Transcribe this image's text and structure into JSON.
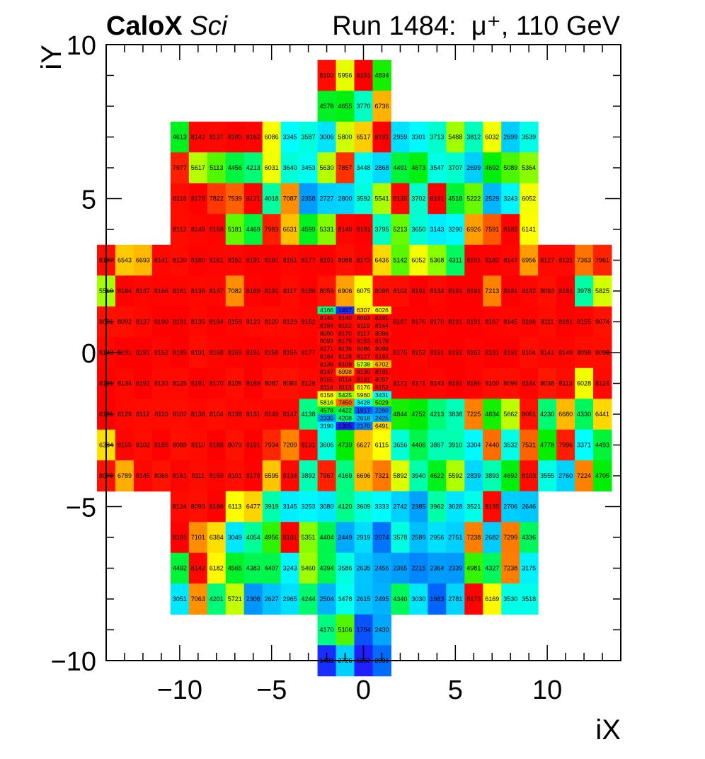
{
  "header": {
    "experiment": "CaloX",
    "detector": "Sci",
    "run_label": "Run 1484:",
    "particle": "μ⁺, 110 GeV"
  },
  "chart_data": {
    "type": "heatmap",
    "xlabel": "iX",
    "ylabel": "iY",
    "xlim": [
      -14,
      14
    ],
    "ylim": [
      -10,
      10
    ],
    "xticks": [
      -10,
      -5,
      0,
      5,
      10
    ],
    "yticks": [
      -10,
      -5,
      0,
      5,
      10
    ],
    "xtick_labels": [
      "−10",
      "−5",
      "0",
      "5",
      "10"
    ],
    "ytick_labels": [
      "−10",
      "−5",
      "0",
      "5",
      "10"
    ],
    "zrange": [
      1300,
      8191
    ],
    "colormap": [
      "#2020ff",
      "#0066ff",
      "#00ccff",
      "#00ffff",
      "#00ff99",
      "#00ee00",
      "#99ff00",
      "#ffff00",
      "#ffaa00",
      "#ff6600",
      "#ff0000"
    ],
    "big_cells": [
      {
        "iy": 9,
        "ix0": -2,
        "values": [
          8100,
          5956,
          8191,
          4834
        ]
      },
      {
        "iy": 8,
        "ix0": -2,
        "values": [
          4578,
          4655,
          3770,
          6736
        ]
      },
      {
        "iy": 7,
        "ix0": -10,
        "values": [
          4613,
          8142,
          8137,
          8180,
          8162,
          6086,
          3345,
          3587,
          3006,
          5800,
          6517,
          8191,
          2959,
          3301,
          3713,
          5488,
          3812,
          6032,
          2699,
          3539
        ]
      },
      {
        "iy": 6,
        "ix0": -10,
        "values": [
          7977,
          5617,
          5113,
          4456,
          4213,
          6031,
          3640,
          3453,
          5630,
          7857,
          3448,
          2868,
          4491,
          4673,
          3547,
          3707,
          2699,
          4692,
          5089,
          5364
        ]
      },
      {
        "iy": 5,
        "ix0": -10,
        "values": [
          8118,
          8178,
          7822,
          7539,
          8171,
          4018,
          7087,
          2358,
          2727,
          2800,
          3592,
          5541,
          8135,
          3702,
          8191,
          4518,
          5222,
          2529,
          3243,
          6052
        ]
      },
      {
        "iy": 4,
        "ix0": -10,
        "values": [
          8112,
          8148,
          8168,
          5181,
          4469,
          7983,
          6631,
          4599,
          5331,
          8148,
          8191,
          3795,
          5213,
          3650,
          3143,
          3290,
          6926,
          7591,
          8182,
          6141
        ]
      },
      {
        "iy": 3,
        "ix0": -14,
        "values": [
          8107,
          6543,
          6693,
          8141,
          8120,
          8180,
          8161,
          8152,
          8191,
          8191,
          8151,
          8177,
          8191,
          8088,
          8173,
          6436,
          5142,
          6052,
          5368,
          4311,
          8191,
          8182,
          8147,
          6956,
          8127,
          8131,
          7363,
          7961
        ]
      },
      {
        "iy": 2,
        "ix0": -14,
        "values": [
          5510,
          8184,
          8147,
          8166,
          8161,
          8136,
          8147,
          7082,
          8169,
          8191,
          8117,
          8186,
          8059,
          6906,
          6075,
          8098,
          8102,
          8191,
          8134,
          8191,
          8191,
          7213,
          8191,
          8142,
          8093,
          8191,
          3978,
          5825
        ]
      },
      {
        "iy": 1,
        "ix0": -14,
        "values": [
          8091,
          8092,
          8137,
          8190,
          8191,
          8135,
          8184,
          8159,
          8123,
          8120,
          8129,
          8162,
          null,
          null,
          null,
          null,
          8187,
          8176,
          8170,
          8191,
          8191,
          8167,
          8145,
          8166,
          8111,
          8181,
          8155,
          8074
        ]
      },
      {
        "iy": 0,
        "ix0": -14,
        "values": [
          8148,
          8191,
          8191,
          8152,
          8189,
          8101,
          8158,
          8169,
          8191,
          8158,
          8156,
          8177,
          null,
          null,
          null,
          null,
          8175,
          8152,
          8191,
          8191,
          8162,
          8191,
          8191,
          8104,
          8141,
          8149,
          8098,
          8098
        ]
      },
      {
        "iy": -1,
        "ix0": -14,
        "values": [
          8191,
          8134,
          8191,
          8133,
          8125,
          8191,
          8170,
          8105,
          8189,
          8087,
          8083,
          8128,
          null,
          null,
          null,
          null,
          8172,
          8171,
          8143,
          8191,
          8166,
          8100,
          8099,
          8164,
          8038,
          8113,
          6028,
          8124
        ]
      },
      {
        "iy": -2,
        "ix0": -14,
        "values": [
          8191,
          8129,
          8112,
          8110,
          8102,
          8138,
          8104,
          8138,
          8131,
          8149,
          8147,
          4138,
          null,
          null,
          null,
          null,
          4844,
          4752,
          4213,
          3838,
          7225,
          4834,
          5662,
          8061,
          4230,
          6680,
          4330,
          6441
        ]
      },
      {
        "iy": -3,
        "ix0": -14,
        "values": [
          6384,
          8155,
          8102,
          8185,
          8089,
          8110,
          8188,
          8079,
          8191,
          7934,
          7209,
          8131,
          3606,
          4739,
          6627,
          6115,
          3656,
          4406,
          3867,
          3910,
          3304,
          7440,
          3532,
          7531,
          4778,
          7996,
          3371,
          4493
        ]
      },
      {
        "iy": -4,
        "ix0": -14,
        "values": [
          8078,
          6789,
          8145,
          8066,
          8161,
          8111,
          8159,
          8101,
          8178,
          6595,
          8134,
          3892,
          7967,
          4169,
          6696,
          7321,
          5892,
          3940,
          4622,
          5592,
          2839,
          3893,
          4692,
          8103,
          3555,
          2760,
          7224,
          4705
        ]
      },
      {
        "iy": -5,
        "ix0": -10,
        "values": [
          8124,
          8093,
          8186,
          6113,
          6477,
          3919,
          3145,
          3253,
          3080,
          4120,
          3609,
          3333,
          2742,
          2385,
          3962,
          3028,
          3521,
          8135,
          2706,
          2646
        ]
      },
      {
        "iy": -6,
        "ix0": -10,
        "values": [
          8191,
          7101,
          6384,
          3049,
          4054,
          4956,
          8191,
          5351,
          4404,
          2449,
          2919,
          2074,
          3578,
          2589,
          2956,
          2751,
          7238,
          2682,
          7299,
          4336
        ]
      },
      {
        "iy": -7,
        "ix0": -10,
        "values": [
          4492,
          8142,
          6182,
          4565,
          4383,
          4407,
          3243,
          5460,
          4394,
          3586,
          2635,
          2456,
          2365,
          2215,
          2364,
          2339,
          4981,
          4327,
          7238,
          3175
        ]
      },
      {
        "iy": -8,
        "ix0": -10,
        "values": [
          3051,
          7063,
          4201,
          5721,
          2308,
          2627,
          2965,
          4244,
          2504,
          3478,
          2615,
          2495,
          4340,
          3030,
          1983,
          2781,
          8173,
          6169,
          3530,
          3518
        ]
      },
      {
        "iy": -9,
        "ix0": -2,
        "values": [
          4170,
          5106,
          1794,
          2430
        ]
      },
      {
        "iy": -10,
        "ix0": -2,
        "values": [
          1431,
          2726,
          1263,
          2031
        ]
      }
    ],
    "fine_cells": {
      "iy_top": 2,
      "ix0": -2,
      "rows_per_unit": 4,
      "rows": [
        [
          4166,
          1467,
          6307,
          6026
        ],
        [
          8145,
          8140,
          8093,
          8191
        ],
        [
          8184,
          8152,
          8119,
          8144
        ],
        [
          8090,
          8170,
          8117,
          8086
        ],
        [
          8093,
          8179,
          8163,
          8178
        ],
        [
          8171,
          8136,
          8086,
          8099
        ],
        [
          8164,
          8128,
          8127,
          8163
        ],
        [
          8138,
          8109,
          5738,
          6702
        ],
        [
          8147,
          6998,
          8130,
          8191
        ],
        [
          8155,
          8114,
          8191,
          8097
        ],
        [
          8114,
          8113,
          6176,
          8152
        ],
        [
          6158,
          5425,
          5960,
          3431
        ],
        [
          5816,
          7450,
          3428,
          5029
        ],
        [
          4578,
          4422,
          1917,
          2260
        ],
        [
          2335,
          4208,
          2618,
          2425
        ],
        [
          3190,
          1305,
          2170,
          6491
        ]
      ]
    }
  }
}
